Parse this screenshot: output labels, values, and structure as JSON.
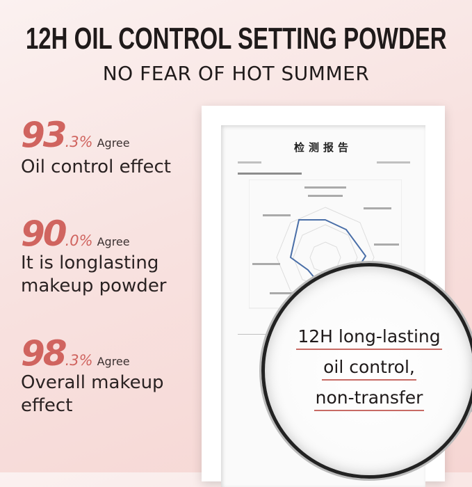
{
  "header": {
    "title": "12H OIL CONTROL SETTING POWDER",
    "subtitle": "NO FEAR OF HOT SUMMER"
  },
  "stats": [
    {
      "number": "93",
      "decimal": ".3%",
      "agree": "Agree",
      "desc_lines": [
        "Oil control effect"
      ]
    },
    {
      "number": "90",
      "decimal": ".0%",
      "agree": "Agree",
      "desc_lines": [
        "It is longlasting",
        "makeup powder"
      ]
    },
    {
      "number": "98",
      "decimal": ".3%",
      "agree": "Agree",
      "desc_lines": [
        "Overall makeup",
        "effect"
      ]
    }
  ],
  "report": {
    "title": "检测报告"
  },
  "magnifier": {
    "lines": [
      "12H long-lasting",
      "oil control,",
      "non-transfer"
    ]
  },
  "colors": {
    "accent": "#d0645f",
    "background": "#f8e2e0"
  }
}
